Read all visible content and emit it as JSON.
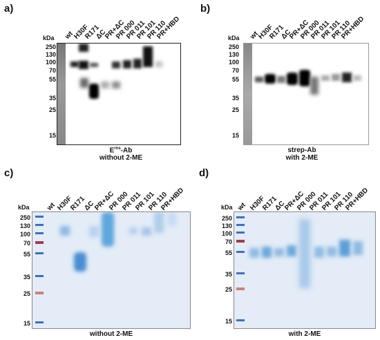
{
  "panels": {
    "a": {
      "label": "a)",
      "kda": "kDa",
      "markers": [
        "250",
        "130",
        "100",
        "70",
        "55",
        "35",
        "25",
        "15"
      ],
      "lanes": [
        "wt",
        "H30F",
        "R171",
        "ΔC",
        "PR+ΔC",
        "PR 000",
        "PR 011",
        "PR 101",
        "PR 110",
        "PR+HBD"
      ],
      "caption_line1_main": "E",
      "caption_line1_sup": "rns",
      "caption_line1_rest": "-Ab",
      "caption_line2": "without 2-ME"
    },
    "b": {
      "label": "b)",
      "kda": "kDa",
      "markers": [
        "250",
        "130",
        "100",
        "70",
        "55",
        "35",
        "25",
        "15"
      ],
      "lanes": [
        "wt",
        "H30F",
        "R171",
        "ΔC",
        "PR+ΔC",
        "PR 000",
        "PR 011",
        "PR 101",
        "PR 110",
        "PR+HBD"
      ],
      "caption_line1": "strep-Ab",
      "caption_line2": "with 2-ME"
    },
    "c": {
      "label": "c)",
      "kda": "kDa",
      "markers": [
        "250",
        "130",
        "100",
        "70",
        "55",
        "35",
        "25",
        "15"
      ],
      "lanes": [
        "wt",
        "H30F",
        "R171",
        "ΔC",
        "PR+ΔC",
        "PR 000",
        "PR 011",
        "PR 101",
        "PR 110",
        "PR+HBD"
      ],
      "caption": "without 2-ME"
    },
    "d": {
      "label": "d)",
      "kda": "kDa",
      "markers": [
        "250",
        "130",
        "100",
        "70",
        "55",
        "35",
        "25",
        "15"
      ],
      "lanes": [
        "wt",
        "H30F",
        "R171",
        "ΔC",
        "PR+ΔC",
        "PR 000",
        "PR 011",
        "PR 101",
        "PR 110",
        "PR+HBD"
      ],
      "caption": "with 2-ME"
    }
  },
  "colors": {
    "blot_band": "#111111",
    "marker_lane": "#8a8a8a",
    "gel_bg": "#dde8f5",
    "gel_band": "#5a9fd6",
    "ladder_blue": "#3b6fc4",
    "ladder_red": "#c0392b"
  }
}
